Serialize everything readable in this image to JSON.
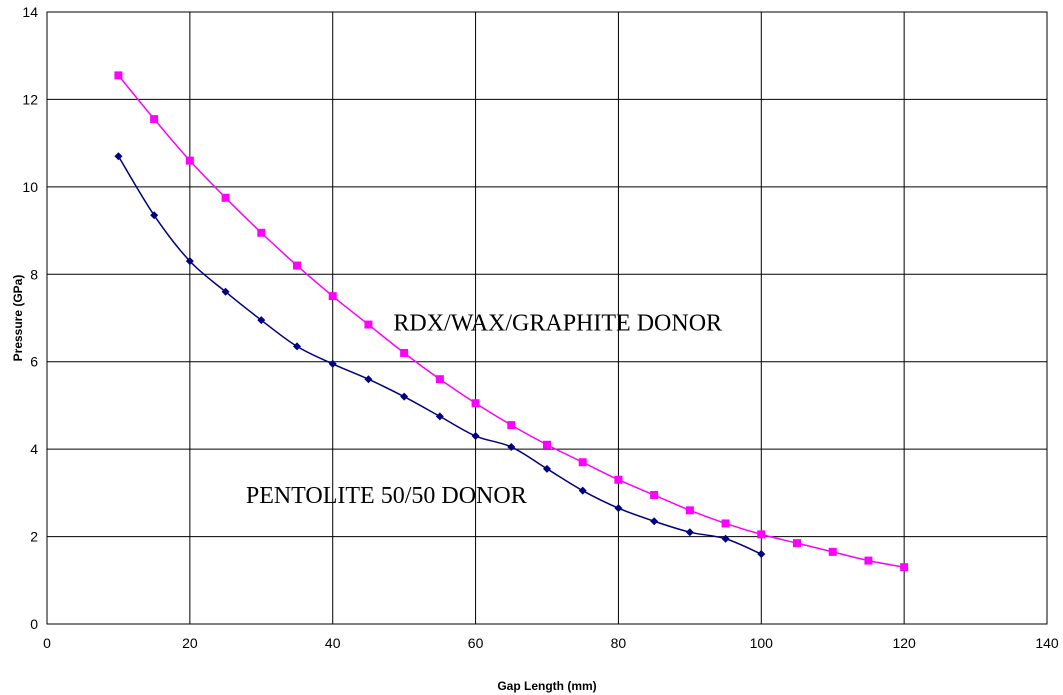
{
  "chart_data": {
    "type": "line",
    "title": "",
    "xlabel": "Gap Length (mm)",
    "ylabel": "Pressure (GPa)",
    "xlim": [
      0,
      140
    ],
    "ylim": [
      0,
      14
    ],
    "xticks": [
      0,
      20,
      40,
      60,
      80,
      100,
      120,
      140
    ],
    "yticks": [
      0,
      2,
      4,
      6,
      8,
      10,
      12,
      14
    ],
    "grid": true,
    "legend": "none",
    "series": [
      {
        "color": "#ff00ff",
        "marker": "square",
        "x": [
          10,
          15,
          20,
          25,
          30,
          35,
          40,
          45,
          50,
          55,
          60,
          65,
          70,
          75,
          80,
          85,
          90,
          95,
          100,
          105,
          110,
          115,
          120
        ],
        "y": [
          12.55,
          11.55,
          10.6,
          9.75,
          8.95,
          8.2,
          7.5,
          6.85,
          6.2,
          5.6,
          5.05,
          4.55,
          4.1,
          3.7,
          3.3,
          2.95,
          2.6,
          2.3,
          2.05,
          1.85,
          1.65,
          1.45,
          1.3
        ]
      },
      {
        "color": "#000080",
        "marker": "diamond",
        "x": [
          10,
          15,
          20,
          25,
          30,
          35,
          40,
          45,
          50,
          55,
          60,
          65,
          70,
          75,
          80,
          85,
          90,
          95,
          100
        ],
        "y": [
          10.7,
          9.35,
          8.3,
          7.6,
          6.95,
          6.35,
          5.95,
          5.6,
          5.2,
          4.75,
          4.3,
          4.05,
          3.55,
          3.05,
          2.65,
          2.35,
          2.1,
          1.95,
          1.6
        ]
      }
    ],
    "annotations": [
      {
        "text": "RDX/WAX/GRAPHITE DONOR",
        "x": 71.5,
        "y": 6.9
      },
      {
        "text": "PENTOLITE 50/50 DONOR",
        "x": 47.5,
        "y": 2.95
      }
    ]
  }
}
